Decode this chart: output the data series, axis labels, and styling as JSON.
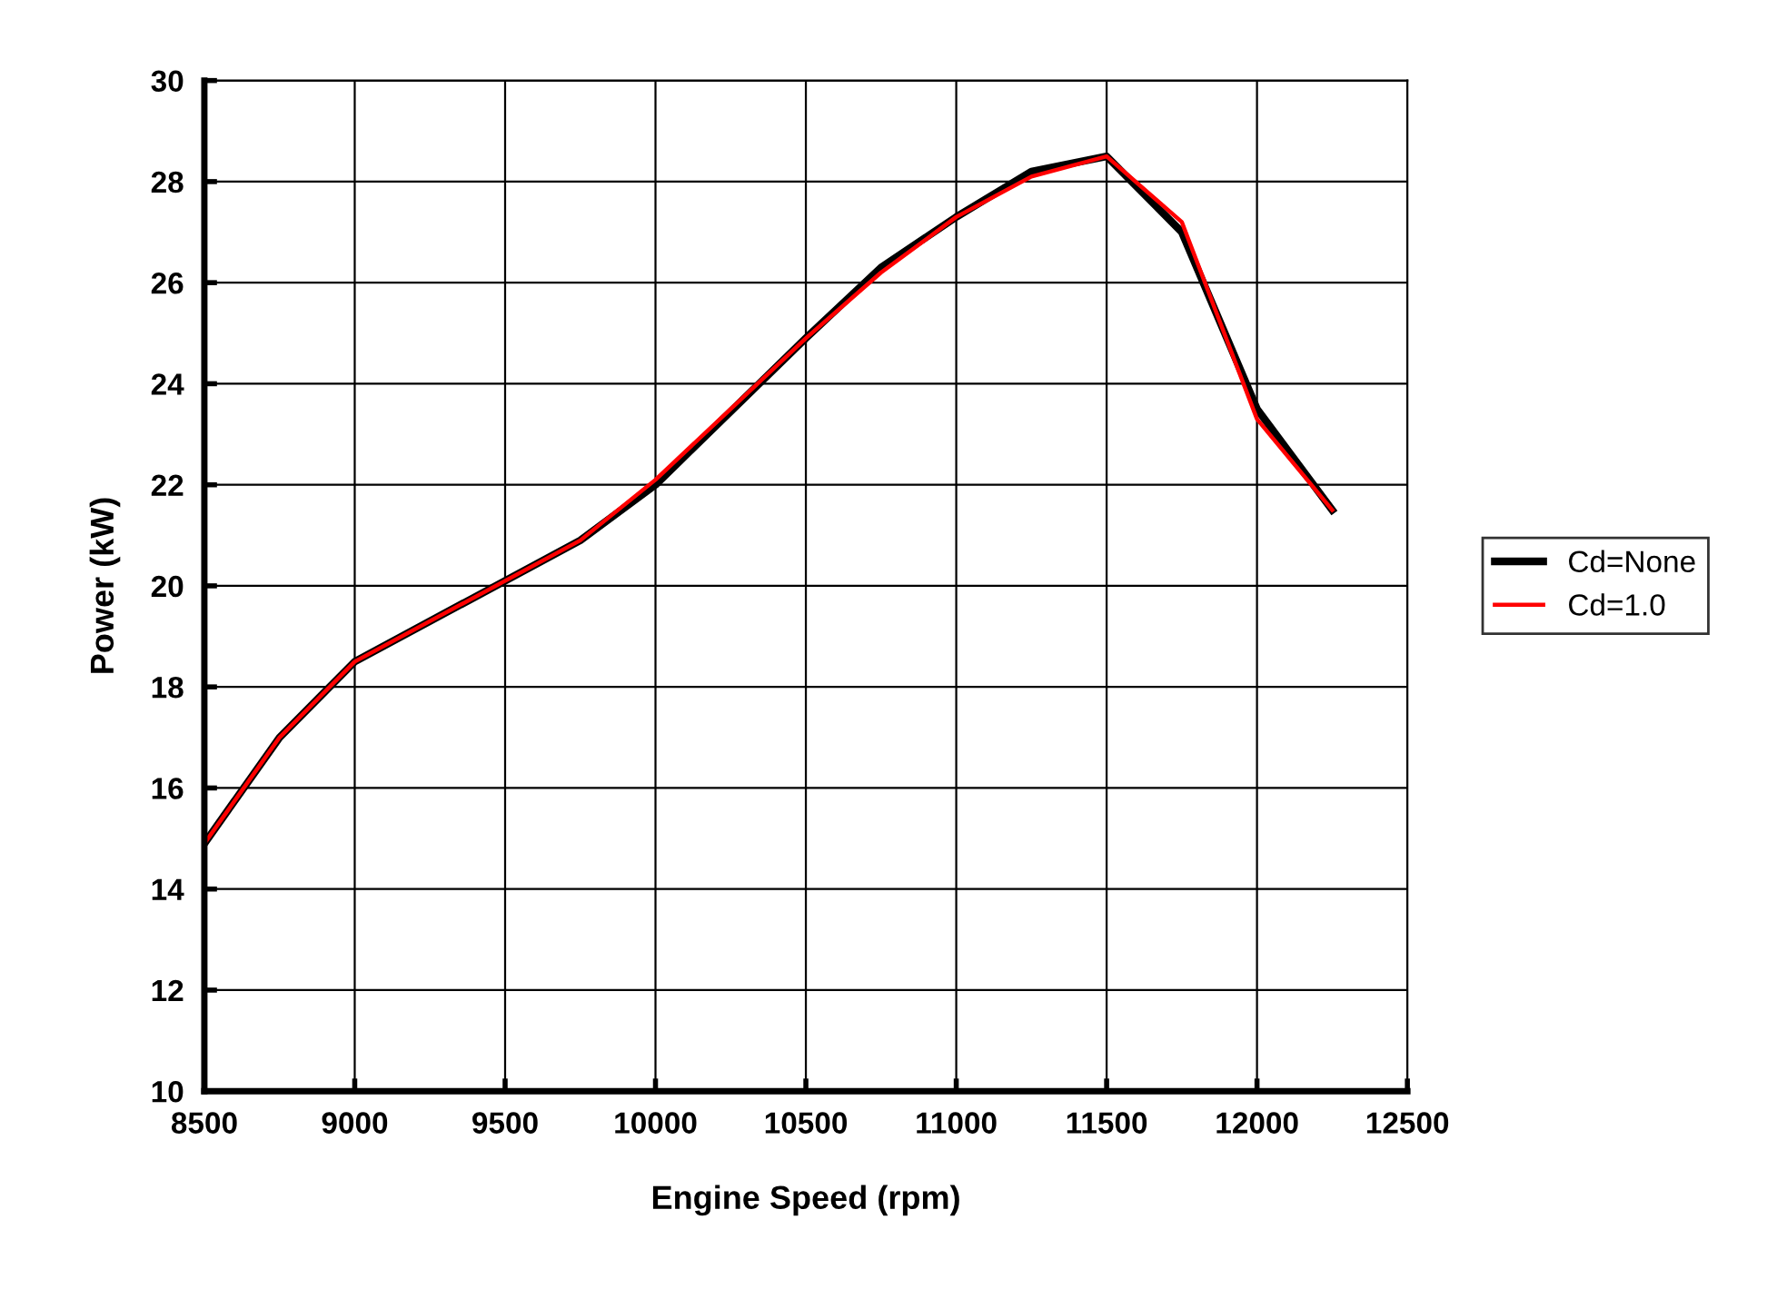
{
  "chart_data": {
    "type": "line",
    "xlabel": "Engine Speed (rpm)",
    "ylabel": "Power (kW)",
    "x": [
      8500,
      8750,
      9000,
      9750,
      10000,
      10500,
      10750,
      11000,
      11250,
      11500,
      11750,
      12000,
      12250
    ],
    "series": [
      {
        "name": "Cd=None",
        "color": "#000000",
        "values": [
          14.9,
          17.0,
          18.5,
          20.9,
          22.0,
          24.9,
          26.3,
          27.3,
          28.2,
          28.5,
          27.0,
          23.5,
          21.5
        ]
      },
      {
        "name": "Cd=1.0",
        "color": "#ff0000",
        "values": [
          14.9,
          17.0,
          18.5,
          20.9,
          22.1,
          24.9,
          26.2,
          27.3,
          28.1,
          28.5,
          27.2,
          23.3,
          21.5
        ]
      }
    ],
    "xlim": [
      8500,
      12500
    ],
    "xticks": [
      8500,
      9000,
      9500,
      10000,
      10500,
      11000,
      11500,
      12000,
      12500
    ],
    "ylim": [
      10,
      30
    ],
    "yticks": [
      10,
      12,
      14,
      16,
      18,
      20,
      22,
      24,
      26,
      28,
      30
    ],
    "grid": true,
    "legend": "right",
    "marker": "none",
    "line_style": "solid"
  }
}
